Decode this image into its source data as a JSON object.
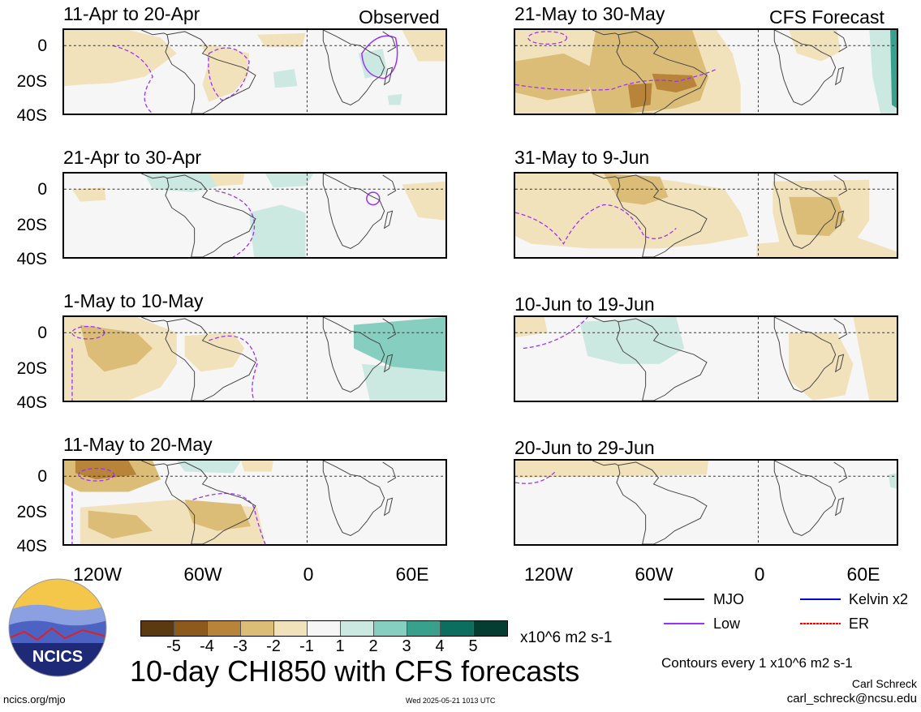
{
  "panels": {
    "p1": {
      "title": "11-Apr to 20-Apr",
      "label": "Observed"
    },
    "p2": {
      "title": "21-May to 30-May",
      "label": "CFS Forecast"
    },
    "p3": {
      "title": "21-Apr to 30-Apr"
    },
    "p4": {
      "title": "31-May to 9-Jun"
    },
    "p5": {
      "title": "1-May to 10-May"
    },
    "p6": {
      "title": "10-Jun to 19-Jun"
    },
    "p7": {
      "title": "11-May to 20-May"
    },
    "p8": {
      "title": "20-Jun to 29-Jun"
    }
  },
  "y_ticks": [
    "0",
    "20S",
    "40S"
  ],
  "x_ticks": [
    "120W",
    "60W",
    "0",
    "60E"
  ],
  "colorbar": {
    "colors": [
      "#5b3a12",
      "#8c5a1c",
      "#b8843a",
      "#dcbd78",
      "#f1e2bb",
      "#f6f6f6",
      "#cbe9e1",
      "#86cfc0",
      "#3aa08e",
      "#0b6e5e",
      "#063d33"
    ],
    "labels": [
      "-5",
      "-4",
      "-3",
      "-2",
      "-1",
      "1",
      "2",
      "3",
      "4",
      "5"
    ],
    "units": "x10^6 m2 s-1"
  },
  "legend": {
    "mjo": "MJO",
    "kelvin": "Kelvin x2",
    "low": "Low",
    "er": "ER",
    "colors": {
      "mjo": "#000000",
      "kelvin": "#0000dd",
      "low": "#9b30ff",
      "er": "#ff0000"
    }
  },
  "contours_note": "Contours every 1 x10^6 m2 s-1",
  "main_title": "10-day CHI850 with CFS forecasts",
  "author": "Carl Schreck",
  "email": "carl_schreck@ncsu.edu",
  "url": "ncics.org/mjo",
  "timestamp": "Wed 2025-05-21 1013 UTC",
  "logo_text": "NCICS"
}
